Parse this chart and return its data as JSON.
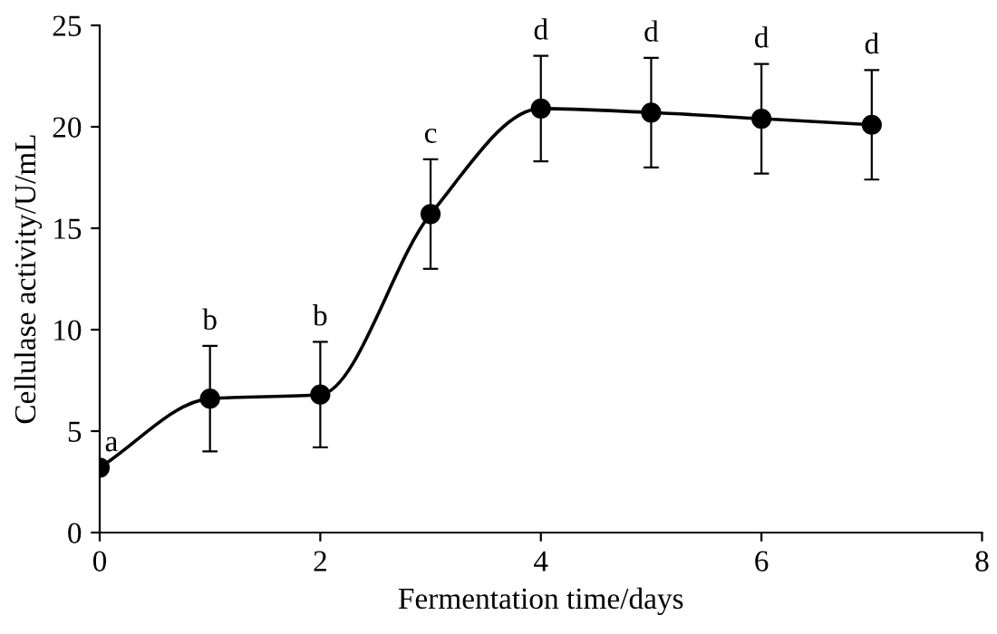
{
  "chart_data": {
    "type": "line",
    "xlabel": "Fermentation time/days",
    "ylabel": "Cellulase activity/U/mL",
    "x": [
      0,
      1,
      2,
      3,
      4,
      5,
      6,
      7
    ],
    "series": [
      {
        "color": "#000000",
        "values": [
          3.2,
          6.6,
          6.8,
          15.7,
          20.9,
          20.7,
          20.4,
          20.1
        ],
        "errors": [
          null,
          2.6,
          2.6,
          2.7,
          2.6,
          2.7,
          2.7,
          2.7
        ]
      }
    ],
    "annotations": [
      {
        "text": "a",
        "x": 0,
        "y": 3.2
      },
      {
        "text": "b",
        "x": 1,
        "y": 9.2
      },
      {
        "text": "b",
        "x": 2,
        "y": 9.4
      },
      {
        "text": "c",
        "x": 3,
        "y": 18.4
      },
      {
        "text": "d",
        "x": 4,
        "y": 23.5
      },
      {
        "text": "d",
        "x": 5,
        "y": 23.4
      },
      {
        "text": "d",
        "x": 6,
        "y": 23.1
      },
      {
        "text": "d",
        "x": 7,
        "y": 22.8
      }
    ],
    "xlim": [
      0,
      8
    ],
    "xticks": [
      0,
      2,
      4,
      6,
      8
    ],
    "ylim": [
      0,
      25
    ],
    "yticks": [
      0,
      5,
      10,
      15,
      20,
      25
    ],
    "marker": "circle",
    "line_style": "solid",
    "grid": false
  }
}
